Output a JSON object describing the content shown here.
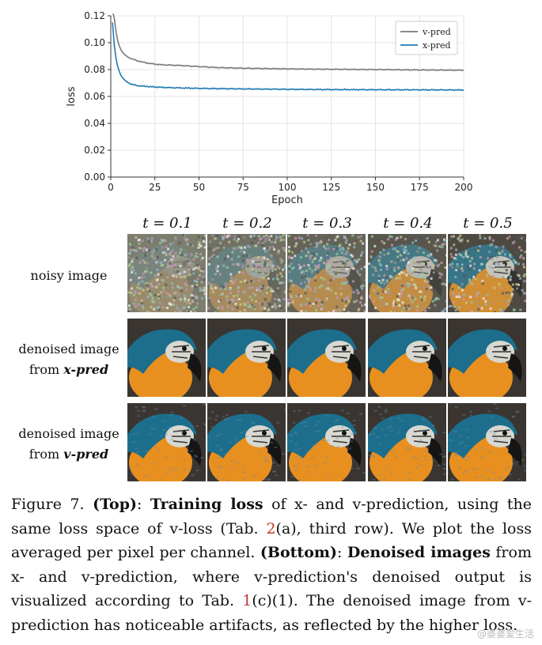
{
  "chart_data": {
    "type": "line",
    "xlabel": "Epoch",
    "ylabel": "loss",
    "xlim": [
      0,
      200
    ],
    "ylim": [
      0,
      0.12
    ],
    "xticks": [
      "0",
      "25",
      "50",
      "75",
      "100",
      "125",
      "150",
      "175",
      "200"
    ],
    "yticks": [
      "0.00",
      "0.02",
      "0.04",
      "0.06",
      "0.08",
      "0.10",
      "0.12"
    ],
    "grid": true,
    "legend_position": "top-right",
    "series": [
      {
        "name": "v-pred",
        "color": "#7a7a7a",
        "x": [
          1,
          2,
          3,
          4,
          5,
          6,
          8,
          10,
          12,
          15,
          20,
          25,
          30,
          40,
          50,
          60,
          75,
          100,
          125,
          150,
          175,
          200
        ],
        "y": [
          0.125,
          0.118,
          0.108,
          0.101,
          0.097,
          0.094,
          0.091,
          0.089,
          0.088,
          0.0865,
          0.085,
          0.084,
          0.0835,
          0.083,
          0.0822,
          0.0815,
          0.081,
          0.0805,
          0.0802,
          0.08,
          0.0797,
          0.0795
        ]
      },
      {
        "name": "x-pred",
        "color": "#1f77b4",
        "x": [
          1,
          2,
          3,
          4,
          5,
          6,
          8,
          10,
          12,
          15,
          20,
          25,
          30,
          40,
          50,
          60,
          75,
          100,
          125,
          150,
          175,
          200
        ],
        "y": [
          0.115,
          0.098,
          0.088,
          0.082,
          0.078,
          0.075,
          0.072,
          0.07,
          0.069,
          0.068,
          0.0675,
          0.067,
          0.0667,
          0.0663,
          0.066,
          0.0658,
          0.0656,
          0.0653,
          0.0651,
          0.065,
          0.0649,
          0.0648
        ]
      }
    ]
  },
  "figure": {
    "t_labels": [
      "t = 0.1",
      "t = 0.2",
      "t = 0.3",
      "t = 0.4",
      "t = 0.5"
    ],
    "rows": [
      {
        "line1": "noisy image",
        "line2_prefix": "",
        "line2_bold": ""
      },
      {
        "line1": "denoised image",
        "line2_prefix": "from ",
        "line2_bold": "x-pred"
      },
      {
        "line1": "denoised image",
        "line2_prefix": "from ",
        "line2_bold": "v-pred"
      }
    ],
    "noise_levels": [
      0.1,
      0.2,
      0.3,
      0.4,
      0.5
    ]
  },
  "caption": {
    "figure_num": "Figure 7.",
    "top_label": "(Top)",
    "top_title": "Training loss",
    "text1": " of x- and v-prediction, using the same loss space of v-loss (Tab. ",
    "ref1": "2",
    "text2": "(a), third row). We plot the loss averaged per pixel per channel. ",
    "bottom_label": "(Bottom)",
    "bottom_title": "Denoised images",
    "text3": " from x- and v-prediction, where v-prediction's denoised output is visualized according to Tab. ",
    "ref2": "1",
    "text4": "(c)(1). The denoised image from v-prediction has noticeable artifacts, as reflected by the higher loss."
  },
  "watermark": "@婆婆爱生活"
}
